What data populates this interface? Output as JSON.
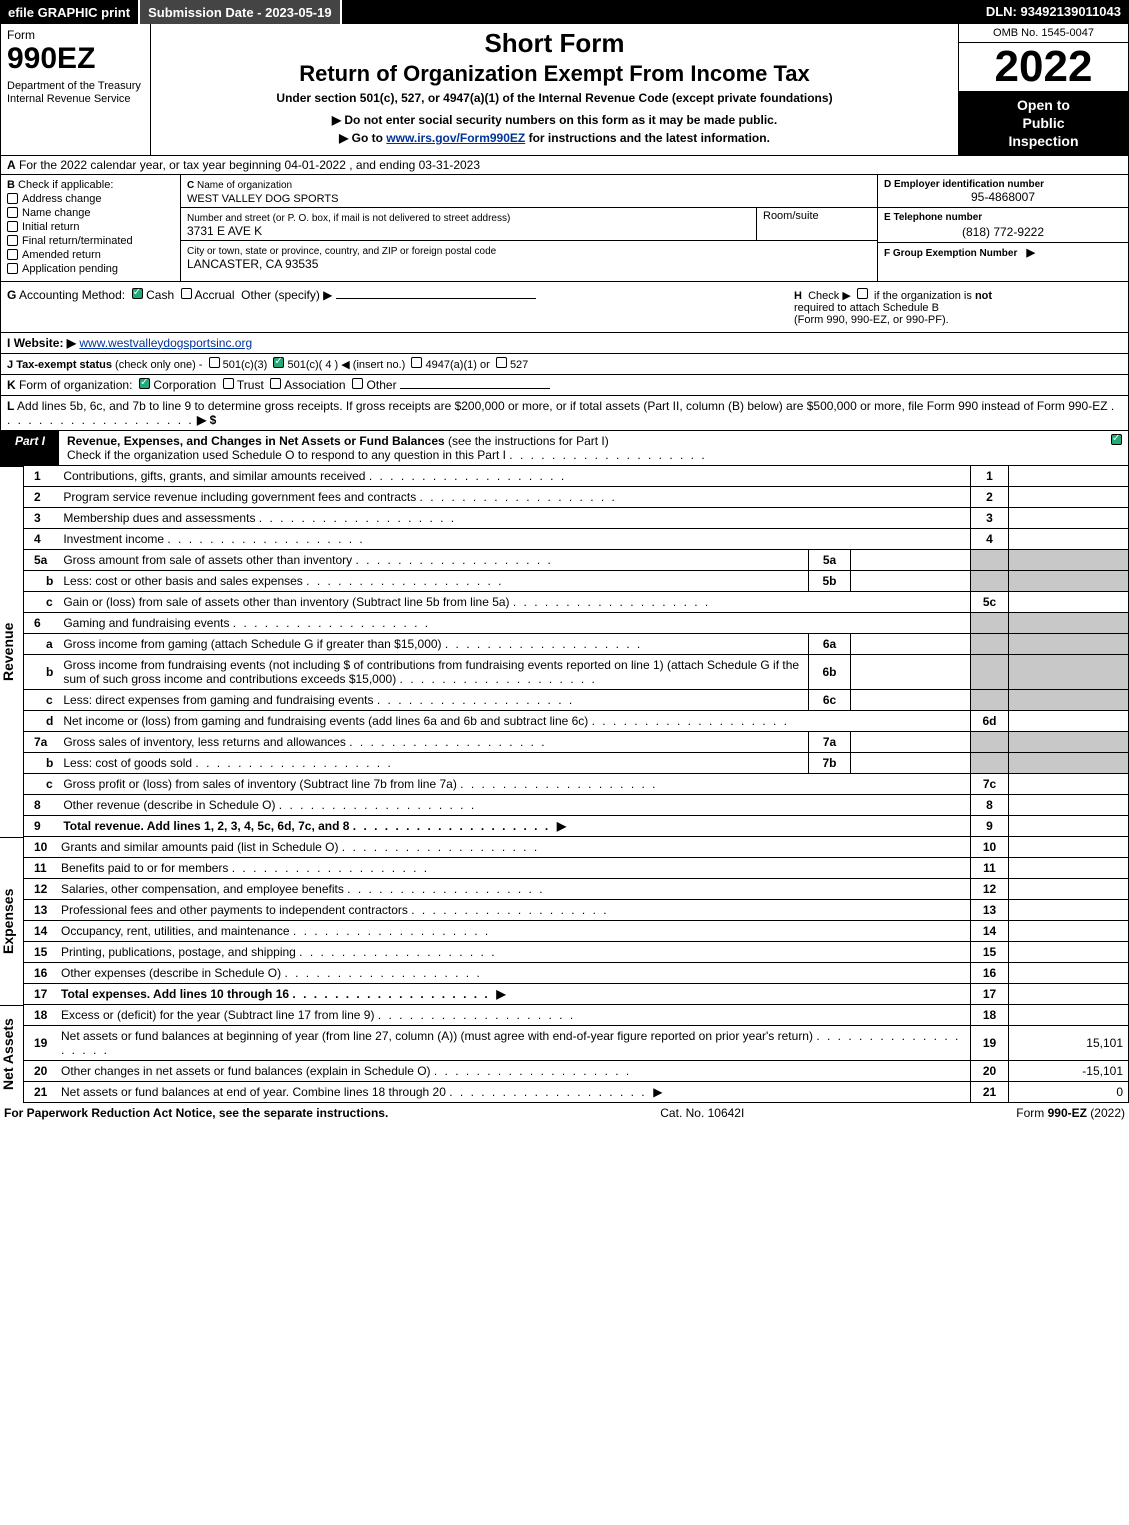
{
  "colors": {
    "black": "#000000",
    "white": "#ffffff",
    "grey": "#c8c8c8",
    "link": "#003399",
    "check_green": "#22aa77"
  },
  "topbar": {
    "efile": "efile GRAPHIC print",
    "submission": "Submission Date - 2023-05-19",
    "dln": "DLN: 93492139011043"
  },
  "header": {
    "form_label": "Form",
    "form_number": "990EZ",
    "dept1": "Department of the Treasury",
    "dept2": "Internal Revenue Service",
    "short_form": "Short Form",
    "title": "Return of Organization Exempt From Income Tax",
    "subtitle1": "Under section 501(c), 527, or 4947(a)(1) of the Internal Revenue Code (except private foundations)",
    "subtitle2": "▶ Do not enter social security numbers on this form as it may be made public.",
    "subtitle3_pre": "▶ Go to ",
    "subtitle3_link": "www.irs.gov/Form990EZ",
    "subtitle3_post": " for instructions and the latest information.",
    "omb": "OMB No. 1545-0047",
    "year": "2022",
    "inspect1": "Open to",
    "inspect2": "Public",
    "inspect3": "Inspection"
  },
  "line_a": {
    "label_a": "A",
    "text": "For the 2022 calendar year, or tax year beginning 04-01-2022 , and ending 03-31-2023"
  },
  "box_b": {
    "label": "B",
    "check_if": "Check if applicable:",
    "items": [
      "Address change",
      "Name change",
      "Initial return",
      "Final return/terminated",
      "Amended return",
      "Application pending"
    ]
  },
  "box_c": {
    "label": "C",
    "name_lbl": "Name of organization",
    "name_val": "WEST VALLEY DOG SPORTS",
    "street_lbl": "Number and street (or P. O. box, if mail is not delivered to street address)",
    "street_val": "3731 E AVE K",
    "room_lbl": "Room/suite",
    "city_lbl": "City or town, state or province, country, and ZIP or foreign postal code",
    "city_val": "LANCASTER, CA  93535"
  },
  "box_d": {
    "label": "D",
    "lbl": "Employer identification number",
    "val": "95-4868007"
  },
  "box_e": {
    "label": "E",
    "lbl": "Telephone number",
    "val": "(818) 772-9222"
  },
  "box_f": {
    "label": "F",
    "lbl": "Group Exemption Number",
    "arrow": "▶"
  },
  "line_g": {
    "label": "G",
    "text": "Accounting Method:",
    "cash": "Cash",
    "accrual": "Accrual",
    "other": "Other (specify) ▶"
  },
  "line_h": {
    "label": "H",
    "text1": "Check ▶",
    "text2": "if the organization is",
    "not": "not",
    "text3": "required to attach Schedule B",
    "text4": "(Form 990, 990-EZ, or 990-PF)."
  },
  "line_i": {
    "label": "I",
    "text": "Website: ▶",
    "url": "www.westvalleydogsportsinc.org"
  },
  "line_j": {
    "label": "J",
    "text": "Tax-exempt status",
    "sub": "(check only one) -",
    "o1": "501(c)(3)",
    "o2": "501(c)( 4 ) ◀ (insert no.)",
    "o3": "4947(a)(1) or",
    "o4": "527"
  },
  "line_k": {
    "label": "K",
    "text": "Form of organization:",
    "o1": "Corporation",
    "o2": "Trust",
    "o3": "Association",
    "o4": "Other"
  },
  "line_l": {
    "label": "L",
    "text": "Add lines 5b, 6c, and 7b to line 9 to determine gross receipts. If gross receipts are $200,000 or more, or if total assets (Part II, column (B) below) are $500,000 or more, file Form 990 instead of Form 990-EZ",
    "arrow": "▶ $"
  },
  "part1": {
    "tab": "Part I",
    "title": "Revenue, Expenses, and Changes in Net Assets or Fund Balances",
    "title_paren": "(see the instructions for Part I)",
    "checkline": "Check if the organization used Schedule O to respond to any question in this Part I"
  },
  "revenue": {
    "section_label": "Revenue",
    "rows": [
      {
        "n": "1",
        "t": "Contributions, gifts, grants, and similar amounts received",
        "rn": "1"
      },
      {
        "n": "2",
        "t": "Program service revenue including government fees and contracts",
        "rn": "2"
      },
      {
        "n": "3",
        "t": "Membership dues and assessments",
        "rn": "3"
      },
      {
        "n": "4",
        "t": "Investment income",
        "rn": "4"
      },
      {
        "n": "5a",
        "t": "Gross amount from sale of assets other than inventory",
        "sub_lbl": "5a"
      },
      {
        "n": "b",
        "t": "Less: cost or other basis and sales expenses",
        "sub_lbl": "5b"
      },
      {
        "n": "c",
        "t": "Gain or (loss) from sale of assets other than inventory (Subtract line 5b from line 5a)",
        "rn": "5c"
      },
      {
        "n": "6",
        "t": "Gaming and fundraising events"
      },
      {
        "n": "a",
        "t": "Gross income from gaming (attach Schedule G if greater than $15,000)",
        "sub_lbl": "6a"
      },
      {
        "n": "b",
        "t": "Gross income from fundraising events (not including $                     of contributions from fundraising events reported on line 1) (attach Schedule G if the sum of such gross income and contributions exceeds $15,000)",
        "sub_lbl": "6b"
      },
      {
        "n": "c",
        "t": "Less: direct expenses from gaming and fundraising events",
        "sub_lbl": "6c"
      },
      {
        "n": "d",
        "t": "Net income or (loss) from gaming and fundraising events (add lines 6a and 6b and subtract line 6c)",
        "rn": "6d"
      },
      {
        "n": "7a",
        "t": "Gross sales of inventory, less returns and allowances",
        "sub_lbl": "7a"
      },
      {
        "n": "b",
        "t": "Less: cost of goods sold",
        "sub_lbl": "7b"
      },
      {
        "n": "c",
        "t": "Gross profit or (loss) from sales of inventory (Subtract line 7b from line 7a)",
        "rn": "7c"
      },
      {
        "n": "8",
        "t": "Other revenue (describe in Schedule O)",
        "rn": "8"
      },
      {
        "n": "9",
        "t": "Total revenue. Add lines 1, 2, 3, 4, 5c, 6d, 7c, and 8",
        "rn": "9",
        "bold": true,
        "arrow": true
      }
    ]
  },
  "expenses": {
    "section_label": "Expenses",
    "rows": [
      {
        "n": "10",
        "t": "Grants and similar amounts paid (list in Schedule O)",
        "rn": "10"
      },
      {
        "n": "11",
        "t": "Benefits paid to or for members",
        "rn": "11"
      },
      {
        "n": "12",
        "t": "Salaries, other compensation, and employee benefits",
        "rn": "12"
      },
      {
        "n": "13",
        "t": "Professional fees and other payments to independent contractors",
        "rn": "13"
      },
      {
        "n": "14",
        "t": "Occupancy, rent, utilities, and maintenance",
        "rn": "14"
      },
      {
        "n": "15",
        "t": "Printing, publications, postage, and shipping",
        "rn": "15"
      },
      {
        "n": "16",
        "t": "Other expenses (describe in Schedule O)",
        "rn": "16"
      },
      {
        "n": "17",
        "t": "Total expenses. Add lines 10 through 16",
        "rn": "17",
        "bold": true,
        "arrow": true
      }
    ]
  },
  "netassets": {
    "section_label": "Net Assets",
    "rows": [
      {
        "n": "18",
        "t": "Excess or (deficit) for the year (Subtract line 17 from line 9)",
        "rn": "18"
      },
      {
        "n": "19",
        "t": "Net assets or fund balances at beginning of year (from line 27, column (A)) (must agree with end-of-year figure reported on prior year's return)",
        "rn": "19",
        "val": "15,101"
      },
      {
        "n": "20",
        "t": "Other changes in net assets or fund balances (explain in Schedule O)",
        "rn": "20",
        "val": "-15,101"
      },
      {
        "n": "21",
        "t": "Net assets or fund balances at end of year. Combine lines 18 through 20",
        "rn": "21",
        "val": "0",
        "arrow": true
      }
    ]
  },
  "footer": {
    "left": "For Paperwork Reduction Act Notice, see the separate instructions.",
    "center": "Cat. No. 10642I",
    "right_pre": "Form ",
    "right_bold": "990-EZ",
    "right_post": " (2022)"
  }
}
